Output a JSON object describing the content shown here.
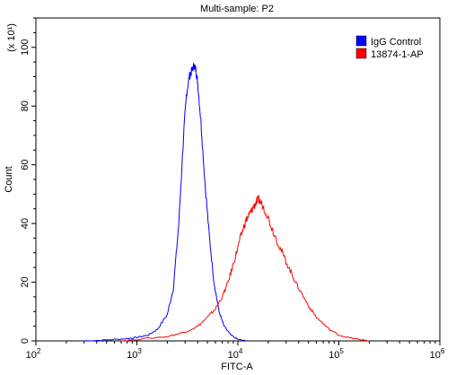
{
  "chart_data": {
    "type": "line",
    "title": "Multi-sample: P2",
    "xlabel": "FITC-A",
    "ylabel": "Count",
    "y_multiplier_label": "(x 10¹)",
    "x_scale": "log",
    "xlim": [
      100,
      1000000
    ],
    "ylim": [
      0,
      110
    ],
    "x_ticks": [
      {
        "value": 100,
        "base": "10",
        "exp": "2"
      },
      {
        "value": 1000,
        "base": "10",
        "exp": "3"
      },
      {
        "value": 10000,
        "base": "10",
        "exp": "4"
      },
      {
        "value": 100000,
        "base": "10",
        "exp": "5"
      },
      {
        "value": 1000000,
        "base": "10",
        "exp": "6"
      }
    ],
    "y_ticks": [
      0,
      20,
      40,
      60,
      80,
      100
    ],
    "legend_position": "top-right",
    "series": [
      {
        "name": "IgG Control",
        "color": "#0000ff",
        "x": [
          300,
          500,
          800,
          1000,
          1300,
          1600,
          2000,
          2300,
          2600,
          2900,
          3100,
          3300,
          3500,
          3700,
          3850,
          4000,
          4300,
          4700,
          5200,
          5800,
          6500,
          7300,
          8500,
          10000,
          12000
        ],
        "y": [
          0,
          0.3,
          0.8,
          1.2,
          2,
          4,
          9,
          18,
          40,
          70,
          84,
          90,
          92,
          94,
          92,
          88,
          75,
          55,
          36,
          20,
          10,
          5,
          2,
          0.5,
          0
        ]
      },
      {
        "name": "13874-1-AP",
        "color": "#ff0000",
        "x": [
          700,
          1000,
          2000,
          3000,
          4000,
          5000,
          6000,
          7000,
          8000,
          9000,
          10000,
          11000,
          12000,
          13000,
          14000,
          15000,
          16000,
          17000,
          19000,
          22000,
          26000,
          30000,
          35000,
          40000,
          50000,
          60000,
          80000,
          100000,
          130000,
          160000,
          200000
        ],
        "y": [
          0,
          0.5,
          1.5,
          3,
          5,
          8,
          11,
          15,
          20,
          26,
          32,
          37,
          41,
          43,
          45,
          47,
          48,
          47,
          44,
          38,
          32,
          27,
          22,
          18,
          12,
          8,
          4,
          2,
          1,
          0.5,
          0
        ]
      }
    ]
  }
}
